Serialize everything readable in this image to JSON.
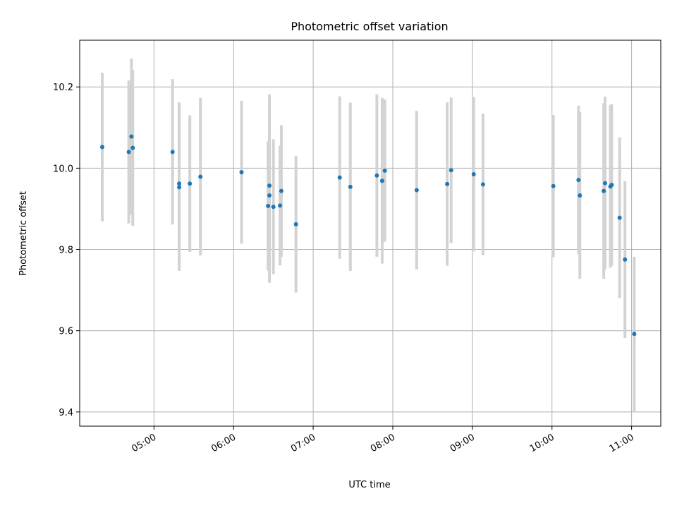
{
  "chart_data": {
    "type": "scatter",
    "title": "Photometric offset variation",
    "xlabel": "UTC time",
    "ylabel": "Photometric offset",
    "grid": true,
    "legend": "none",
    "x_time_range": [
      "04:04",
      "11:22"
    ],
    "ylim": [
      9.365,
      10.315
    ],
    "x_ticks": [
      "05:00",
      "06:00",
      "07:00",
      "08:00",
      "09:00",
      "10:00",
      "11:00"
    ],
    "y_ticks": [
      "9.4",
      "9.6",
      "9.8",
      "10.0",
      "10.2"
    ],
    "point_color": "#1f77b4",
    "errorbar_color": "#d3d3d3",
    "points": [
      {
        "x": "04:21",
        "y": 10.052,
        "err": 0.183
      },
      {
        "x": "04:41",
        "y": 10.04,
        "err": 0.176
      },
      {
        "x": "04:43",
        "y": 10.078,
        "err": 0.192
      },
      {
        "x": "04:44",
        "y": 10.05,
        "err": 0.192
      },
      {
        "x": "05:14",
        "y": 10.04,
        "err": 0.179
      },
      {
        "x": "05:19",
        "y": 9.962,
        "err": 0.2
      },
      {
        "x": "05:19",
        "y": 9.953,
        "err": 0.206
      },
      {
        "x": "05:27",
        "y": 9.962,
        "err": 0.168
      },
      {
        "x": "05:35",
        "y": 9.979,
        "err": 0.194
      },
      {
        "x": "06:06",
        "y": 9.99,
        "err": 0.176
      },
      {
        "x": "06:26",
        "y": 9.907,
        "err": 0.159
      },
      {
        "x": "06:27",
        "y": 9.957,
        "err": 0.225
      },
      {
        "x": "06:27",
        "y": 9.933,
        "err": 0.215
      },
      {
        "x": "06:30",
        "y": 9.905,
        "err": 0.166
      },
      {
        "x": "06:35",
        "y": 9.908,
        "err": 0.147
      },
      {
        "x": "06:36",
        "y": 9.944,
        "err": 0.162
      },
      {
        "x": "06:47",
        "y": 9.862,
        "err": 0.168
      },
      {
        "x": "07:20",
        "y": 9.977,
        "err": 0.2
      },
      {
        "x": "07:28",
        "y": 9.954,
        "err": 0.207
      },
      {
        "x": "07:48",
        "y": 9.982,
        "err": 0.2
      },
      {
        "x": "07:52",
        "y": 9.969,
        "err": 0.204
      },
      {
        "x": "07:54",
        "y": 9.994,
        "err": 0.175
      },
      {
        "x": "08:18",
        "y": 9.946,
        "err": 0.195
      },
      {
        "x": "08:41",
        "y": 9.961,
        "err": 0.201
      },
      {
        "x": "08:44",
        "y": 9.995,
        "err": 0.179
      },
      {
        "x": "09:01",
        "y": 9.985,
        "err": 0.19
      },
      {
        "x": "09:08",
        "y": 9.96,
        "err": 0.174
      },
      {
        "x": "10:01",
        "y": 9.956,
        "err": 0.175
      },
      {
        "x": "10:20",
        "y": 9.971,
        "err": 0.183
      },
      {
        "x": "10:21",
        "y": 9.933,
        "err": 0.205
      },
      {
        "x": "10:39",
        "y": 9.944,
        "err": 0.216
      },
      {
        "x": "10:40",
        "y": 9.963,
        "err": 0.213
      },
      {
        "x": "10:44",
        "y": 9.955,
        "err": 0.2
      },
      {
        "x": "10:45",
        "y": 9.959,
        "err": 0.199
      },
      {
        "x": "10:51",
        "y": 9.878,
        "err": 0.198
      },
      {
        "x": "10:55",
        "y": 9.775,
        "err": 0.193
      },
      {
        "x": "11:02",
        "y": 9.592,
        "err": 0.19
      }
    ]
  }
}
